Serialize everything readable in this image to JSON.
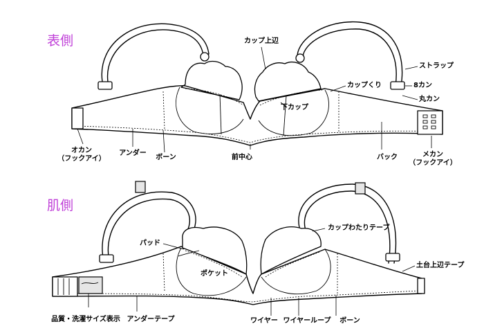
{
  "colors": {
    "title": "#c040d8",
    "line": "#000000"
  },
  "front": {
    "title": "表側",
    "labels": {
      "cup_top_edge": "カップ上辺",
      "strap": "ストラップ",
      "eight_ring": "8カン",
      "cup_seam": "カップくり",
      "round_ring": "丸カン",
      "lower_cup": "下カップ",
      "hook_eye": "オカン",
      "hook_eye_sub": "（フックアイ）",
      "under": "アンダー",
      "bone": "ボーン",
      "center_front": "前中心",
      "back": "バック",
      "hook_female": "メカン",
      "hook_female_sub": "（フックアイ）"
    }
  },
  "inside": {
    "title": "肌側",
    "labels": {
      "pad": "パッド",
      "cup_tape": "カップわたりテープ",
      "band_top_tape": "土台上辺テープ",
      "pocket": "ポケット",
      "quality_label": "品質・洗濯サイズ表示",
      "under_tape": "アンダーテープ",
      "wire": "ワイヤー",
      "wire_loop": "ワイヤーループ",
      "bone": "ボーン"
    }
  }
}
